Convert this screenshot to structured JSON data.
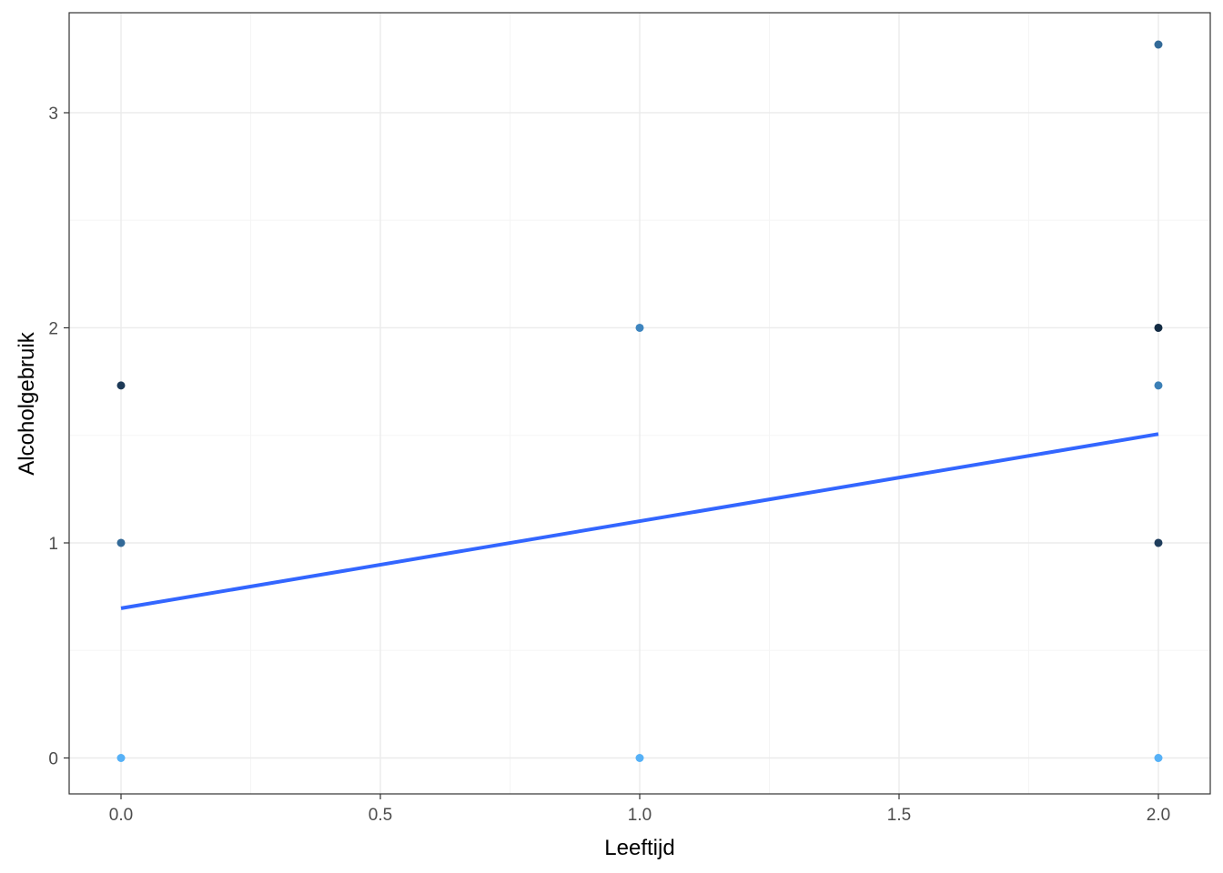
{
  "chart_data": {
    "type": "scatter",
    "title": "",
    "xlabel": "Leeftijd",
    "ylabel": "Alcoholgebruik",
    "xlim": [
      -0.1,
      2.1
    ],
    "ylim": [
      -0.167,
      3.465
    ],
    "x_ticks": [
      0.0,
      0.5,
      1.0,
      1.5,
      2.0
    ],
    "x_tick_labels": [
      "0.0",
      "0.5",
      "1.0",
      "1.5",
      "2.0"
    ],
    "y_ticks": [
      0,
      1,
      2,
      3
    ],
    "y_tick_labels": [
      "0",
      "1",
      "2",
      "3"
    ],
    "grid": true,
    "points": [
      {
        "x": 0,
        "y": 0,
        "color": "#56B1F7"
      },
      {
        "x": 0,
        "y": 1,
        "color": "#336A98"
      },
      {
        "x": 0,
        "y": 1.732,
        "color": "#1D3A57"
      },
      {
        "x": 1,
        "y": 0,
        "color": "#56B1F7"
      },
      {
        "x": 1,
        "y": 2,
        "color": "#3E85BF"
      },
      {
        "x": 2,
        "y": 0,
        "color": "#56B1F7"
      },
      {
        "x": 2,
        "y": 1,
        "color": "#1F3D5C"
      },
      {
        "x": 2,
        "y": 1.732,
        "color": "#3B7FB6"
      },
      {
        "x": 2,
        "y": 2,
        "color": "#132B43"
      },
      {
        "x": 2,
        "y": 3.317,
        "color": "#336A98"
      }
    ],
    "trend_line": {
      "x": [
        0,
        2
      ],
      "y": [
        0.696,
        1.506
      ],
      "color": "#3366FF"
    },
    "colors": {
      "panel_border": "#333333",
      "grid_major": "#EBEBEB",
      "grid_minor": "#F5F5F5",
      "axis_tick": "#333333"
    }
  }
}
